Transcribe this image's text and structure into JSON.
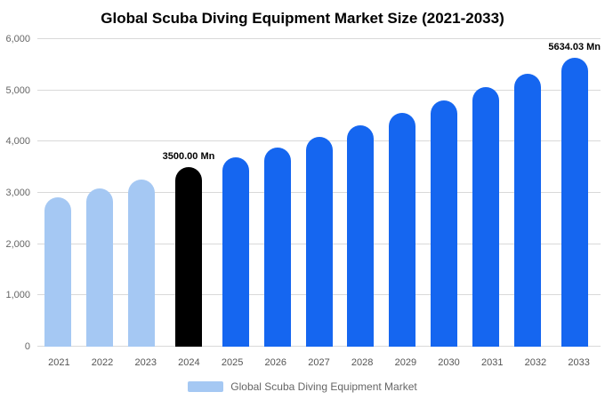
{
  "chart_data": {
    "type": "bar",
    "title": "Global Scuba Diving Equipment Market Size (2021-2033)",
    "categories": [
      "2021",
      "2022",
      "2023",
      "2024",
      "2025",
      "2026",
      "2027",
      "2028",
      "2029",
      "2030",
      "2031",
      "2032",
      "2033"
    ],
    "values": [
      2920,
      3090,
      3260,
      3500,
      3689,
      3888,
      4098,
      4319,
      4553,
      4799,
      5058,
      5331,
      5634.03
    ],
    "bar_colors": [
      "#a5c8f3",
      "#a5c8f3",
      "#a5c8f3",
      "#000000",
      "#1566f0",
      "#1566f0",
      "#1566f0",
      "#1566f0",
      "#1566f0",
      "#1566f0",
      "#1566f0",
      "#1566f0",
      "#1566f0"
    ],
    "ylim": [
      0,
      6000
    ],
    "yticks": [
      0,
      1000,
      2000,
      3000,
      4000,
      5000,
      6000
    ],
    "ytick_labels": [
      "0",
      "1,000",
      "2,000",
      "3,000",
      "4,000",
      "5,000",
      "6,000"
    ],
    "grid": true,
    "annotations": [
      {
        "category": "2024",
        "text": "3500.00 Mn"
      },
      {
        "category": "2033",
        "text": "5634.03 Mn"
      }
    ],
    "legend": {
      "label": "Global Scuba Diving Equipment Market",
      "swatch_color": "#a5c8f3",
      "position": "bottom"
    }
  }
}
